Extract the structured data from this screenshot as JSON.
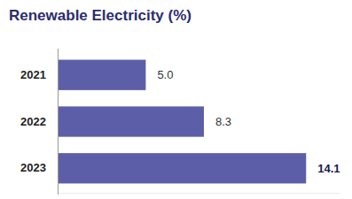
{
  "chart_data": {
    "type": "bar",
    "title": "Renewable Electricity (%)",
    "categories": [
      "2021",
      "2022",
      "2023"
    ],
    "values": [
      5.0,
      8.3,
      14.1
    ],
    "value_labels": [
      "5.0",
      "8.3",
      "14.1"
    ],
    "color": "#5c5fa8",
    "orientation": "horizontal",
    "xlim": [
      0,
      16
    ],
    "xticks": [],
    "data_labels": true,
    "tick_labels": "y",
    "grid": false
  }
}
